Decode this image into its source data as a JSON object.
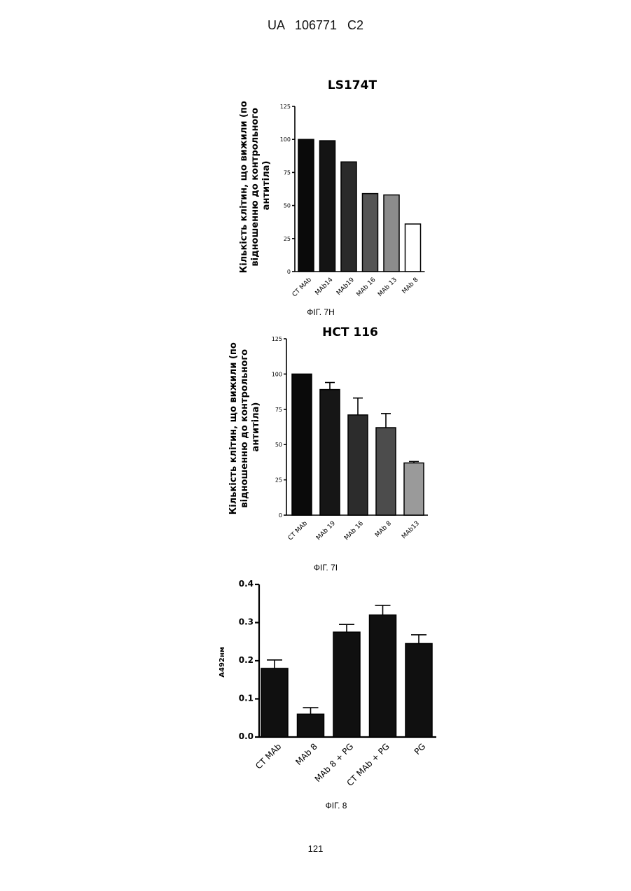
{
  "page": {
    "header": "UA 106771 C2",
    "page_number": "121"
  },
  "chart_data": [
    {
      "type": "bar",
      "title": "LS174T",
      "caption": "ФІГ. 7H",
      "ylabel": [
        "Кількість клітин, що вижили (по",
        "відношенню до контрольного",
        "антитіла)"
      ],
      "xlabel": "",
      "ylim": [
        0,
        125
      ],
      "yticks": [
        "0",
        "25",
        "50",
        "75",
        "100",
        "125"
      ],
      "categories": [
        "CT MAb",
        "MAb14",
        "MAb19",
        "MAb 16",
        "MAb 13",
        "MAb 8"
      ],
      "values": [
        100,
        99,
        83,
        59,
        58,
        36
      ],
      "colors": [
        "#0a0a0a",
        "#141414",
        "#2a2a2a",
        "#555555",
        "#8c8c8c",
        "#ffffff"
      ]
    },
    {
      "type": "bar",
      "title": "HCT 116",
      "caption": "ФІГ. 7I",
      "ylabel": [
        "Кількість клітин, що вижили (по",
        "відношенню до контрольного",
        "антитіла)"
      ],
      "xlabel": "",
      "ylim": [
        0,
        125
      ],
      "yticks": [
        "0",
        "25",
        "50",
        "75",
        "100",
        "125"
      ],
      "categories": [
        "CT MAb",
        "MAb 19",
        "MAb 16",
        "MAb 8",
        "MAb13"
      ],
      "values": [
        100,
        89,
        71,
        62,
        37
      ],
      "errors": [
        0,
        5,
        12,
        10,
        1
      ],
      "colors": [
        "#0a0a0a",
        "#161616",
        "#2c2c2c",
        "#4c4c4c",
        "#9a9a9a"
      ]
    },
    {
      "type": "bar",
      "title": "",
      "caption": "ФІГ. 8",
      "ylabel": [
        "A492нм"
      ],
      "xlabel": "",
      "ylim": [
        0,
        0.4
      ],
      "yticks": [
        "0.0",
        "0.1",
        "0.2",
        "0.3",
        "0.4"
      ],
      "categories": [
        "CT MAb",
        "MAb 8",
        "MAb 8 + PG",
        "CT MAb + PG",
        "PG"
      ],
      "values": [
        0.18,
        0.06,
        0.275,
        0.32,
        0.245
      ],
      "errors": [
        0.022,
        0.017,
        0.02,
        0.025,
        0.023
      ],
      "colors": [
        "#101010",
        "#101010",
        "#101010",
        "#101010",
        "#101010"
      ]
    }
  ]
}
